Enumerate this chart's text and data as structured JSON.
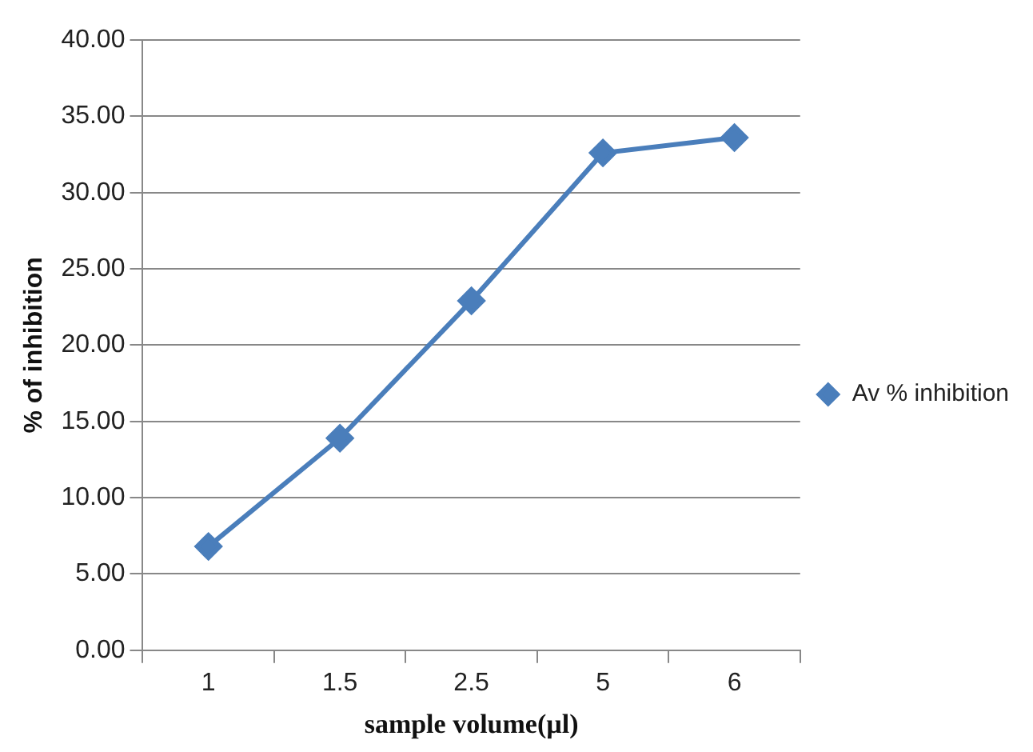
{
  "chart_data": {
    "type": "line",
    "xlabel": "sample volume(µl)",
    "ylabel": "% of inhibition",
    "categories": [
      "1",
      "1.5",
      "2.5",
      "5",
      "6"
    ],
    "series": [
      {
        "name": "Av % inhibition",
        "color": "#4a7ebb",
        "values": [
          6.8,
          13.9,
          22.9,
          32.6,
          33.6
        ]
      }
    ],
    "ylim": [
      0,
      40
    ],
    "yticks": [
      {
        "value": 0,
        "label": "0.00"
      },
      {
        "value": 5,
        "label": "5.00"
      },
      {
        "value": 10,
        "label": "10.00"
      },
      {
        "value": 15,
        "label": "15.00"
      },
      {
        "value": 20,
        "label": "20.00"
      },
      {
        "value": 25,
        "label": "25.00"
      },
      {
        "value": 30,
        "label": "30.00"
      },
      {
        "value": 35,
        "label": "35.00"
      },
      {
        "value": 40,
        "label": "40.00"
      }
    ],
    "grid": "y",
    "legend": "right",
    "marker": "diamond",
    "line_style": "solid"
  }
}
